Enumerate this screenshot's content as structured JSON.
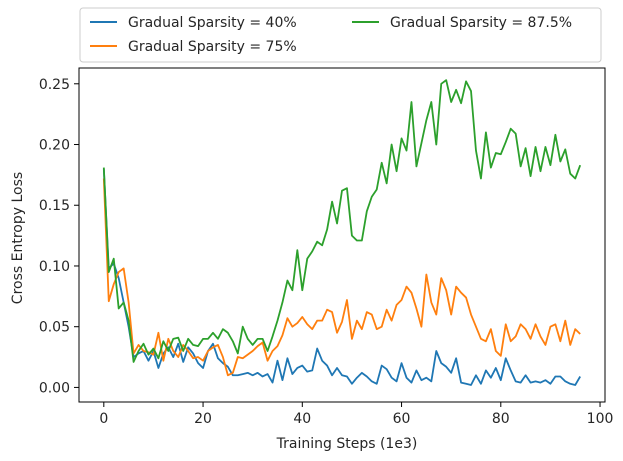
{
  "chart_data": {
    "type": "line",
    "xlabel": "Training Steps (1e3)",
    "ylabel": "Cross Entropy Loss",
    "xlim": [
      -5,
      101
    ],
    "ylim": [
      -0.012,
      0.263
    ],
    "xticks": [
      0,
      20,
      40,
      60,
      80,
      100
    ],
    "yticks": [
      0.0,
      0.05,
      0.1,
      0.15,
      0.2,
      0.25
    ],
    "ytick_labels": [
      "0.00",
      "0.05",
      "0.10",
      "0.15",
      "0.20",
      "0.25"
    ],
    "grid": false,
    "legend": {
      "placement": "above-plot",
      "columns": 2
    },
    "series": [
      {
        "name": "Gradual Sparsity = 40%",
        "color": "#1f77b4",
        "x": [
          0,
          1,
          2,
          3,
          4,
          5,
          6,
          7,
          8,
          9,
          10,
          11,
          12,
          13,
          14,
          15,
          16,
          17,
          18,
          19,
          20,
          21,
          22,
          23,
          24,
          25,
          26,
          27,
          28,
          29,
          30,
          31,
          32,
          33,
          34,
          35,
          36,
          37,
          38,
          39,
          40,
          41,
          42,
          43,
          44,
          45,
          46,
          47,
          48,
          49,
          50,
          51,
          52,
          53,
          54,
          55,
          56,
          57,
          58,
          59,
          60,
          61,
          62,
          63,
          64,
          65,
          66,
          67,
          68,
          69,
          70,
          71,
          72,
          73,
          74,
          75,
          76,
          77,
          78,
          79,
          80,
          81,
          82,
          83,
          84,
          85,
          86,
          87,
          88,
          89,
          90,
          91,
          92,
          93,
          94,
          95,
          96
        ],
        "values": [
          0.18,
          0.098,
          0.102,
          0.09,
          0.07,
          0.05,
          0.025,
          0.028,
          0.03,
          0.022,
          0.03,
          0.016,
          0.028,
          0.033,
          0.025,
          0.036,
          0.021,
          0.033,
          0.028,
          0.02,
          0.016,
          0.03,
          0.036,
          0.024,
          0.02,
          0.017,
          0.01,
          0.01,
          0.011,
          0.012,
          0.01,
          0.012,
          0.009,
          0.011,
          0.004,
          0.022,
          0.006,
          0.024,
          0.011,
          0.016,
          0.018,
          0.013,
          0.014,
          0.032,
          0.022,
          0.018,
          0.01,
          0.016,
          0.01,
          0.009,
          0.003,
          0.008,
          0.012,
          0.009,
          0.005,
          0.003,
          0.018,
          0.015,
          0.008,
          0.005,
          0.02,
          0.008,
          0.004,
          0.014,
          0.006,
          0.008,
          0.005,
          0.03,
          0.02,
          0.017,
          0.012,
          0.024,
          0.004,
          0.003,
          0.002,
          0.01,
          0.003,
          0.014,
          0.008,
          0.016,
          0.006,
          0.024,
          0.014,
          0.005,
          0.004,
          0.01,
          0.004,
          0.005,
          0.004,
          0.006,
          0.003,
          0.009,
          0.009,
          0.005,
          0.003,
          0.002,
          0.009
        ]
      },
      {
        "name": "Gradual Sparsity = 75%",
        "color": "#ff7f0e",
        "x": [
          0,
          1,
          2,
          3,
          4,
          5,
          6,
          7,
          8,
          9,
          10,
          11,
          12,
          13,
          14,
          15,
          16,
          17,
          18,
          19,
          20,
          21,
          22,
          23,
          24,
          25,
          26,
          27,
          28,
          29,
          30,
          31,
          32,
          33,
          34,
          35,
          36,
          37,
          38,
          39,
          40,
          41,
          42,
          43,
          44,
          45,
          46,
          47,
          48,
          49,
          50,
          51,
          52,
          53,
          54,
          55,
          56,
          57,
          58,
          59,
          60,
          61,
          62,
          63,
          64,
          65,
          66,
          67,
          68,
          69,
          70,
          71,
          72,
          73,
          74,
          75,
          76,
          77,
          78,
          79,
          80,
          81,
          82,
          83,
          84,
          85,
          86,
          87,
          88,
          89,
          90,
          91,
          92,
          93,
          94,
          95,
          96
        ],
        "values": [
          0.172,
          0.071,
          0.085,
          0.095,
          0.098,
          0.07,
          0.028,
          0.035,
          0.03,
          0.029,
          0.027,
          0.045,
          0.022,
          0.04,
          0.03,
          0.025,
          0.035,
          0.03,
          0.024,
          0.025,
          0.022,
          0.03,
          0.033,
          0.035,
          0.025,
          0.01,
          0.012,
          0.025,
          0.024,
          0.027,
          0.03,
          0.034,
          0.037,
          0.022,
          0.03,
          0.034,
          0.043,
          0.057,
          0.05,
          0.053,
          0.058,
          0.052,
          0.048,
          0.055,
          0.055,
          0.064,
          0.062,
          0.045,
          0.054,
          0.072,
          0.04,
          0.055,
          0.048,
          0.062,
          0.06,
          0.048,
          0.05,
          0.064,
          0.055,
          0.068,
          0.072,
          0.083,
          0.078,
          0.065,
          0.05,
          0.093,
          0.07,
          0.06,
          0.09,
          0.08,
          0.06,
          0.083,
          0.078,
          0.074,
          0.06,
          0.05,
          0.04,
          0.038,
          0.048,
          0.03,
          0.026,
          0.052,
          0.038,
          0.042,
          0.052,
          0.048,
          0.04,
          0.052,
          0.042,
          0.035,
          0.05,
          0.052,
          0.038,
          0.055,
          0.035,
          0.048,
          0.044
        ]
      },
      {
        "name": "Gradual Sparsity = 87.5%",
        "color": "#2ca02c",
        "x": [
          0,
          1,
          2,
          3,
          4,
          5,
          6,
          7,
          8,
          9,
          10,
          11,
          12,
          13,
          14,
          15,
          16,
          17,
          18,
          19,
          20,
          21,
          22,
          23,
          24,
          25,
          26,
          27,
          28,
          29,
          30,
          31,
          32,
          33,
          34,
          35,
          36,
          37,
          38,
          39,
          40,
          41,
          42,
          43,
          44,
          45,
          46,
          47,
          48,
          49,
          50,
          51,
          52,
          53,
          54,
          55,
          56,
          57,
          58,
          59,
          60,
          61,
          62,
          63,
          64,
          65,
          66,
          67,
          68,
          69,
          70,
          71,
          72,
          73,
          74,
          75,
          76,
          77,
          78,
          79,
          80,
          81,
          82,
          83,
          84,
          85,
          86,
          87,
          88,
          89,
          90,
          91,
          92,
          93,
          94,
          95,
          96
        ],
        "values": [
          0.181,
          0.095,
          0.106,
          0.065,
          0.07,
          0.055,
          0.021,
          0.03,
          0.036,
          0.027,
          0.032,
          0.024,
          0.038,
          0.03,
          0.04,
          0.041,
          0.03,
          0.04,
          0.035,
          0.034,
          0.04,
          0.04,
          0.045,
          0.04,
          0.048,
          0.045,
          0.038,
          0.028,
          0.05,
          0.04,
          0.035,
          0.04,
          0.04,
          0.03,
          0.042,
          0.055,
          0.07,
          0.088,
          0.08,
          0.113,
          0.08,
          0.106,
          0.112,
          0.12,
          0.117,
          0.13,
          0.153,
          0.135,
          0.162,
          0.164,
          0.125,
          0.121,
          0.121,
          0.145,
          0.157,
          0.163,
          0.185,
          0.168,
          0.2,
          0.178,
          0.205,
          0.195,
          0.235,
          0.182,
          0.201,
          0.22,
          0.235,
          0.2,
          0.25,
          0.253,
          0.235,
          0.245,
          0.234,
          0.252,
          0.244,
          0.195,
          0.172,
          0.21,
          0.181,
          0.193,
          0.192,
          0.202,
          0.213,
          0.209,
          0.182,
          0.197,
          0.174,
          0.198,
          0.178,
          0.198,
          0.183,
          0.208,
          0.186,
          0.196,
          0.176,
          0.172,
          0.183
        ]
      }
    ]
  }
}
